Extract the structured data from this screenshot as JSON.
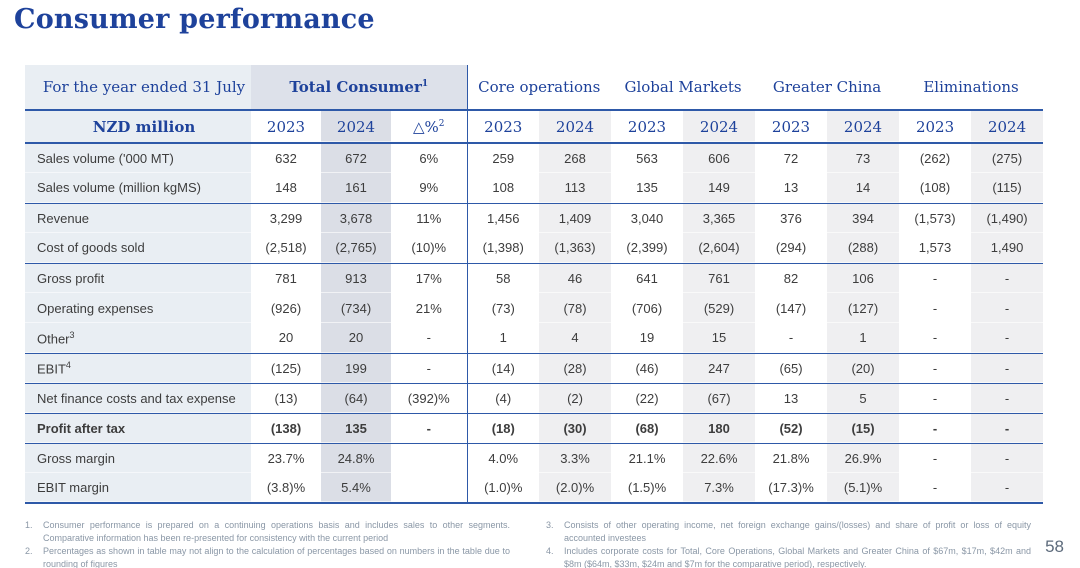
{
  "page": {
    "title": "Consumer performance",
    "page_number": "58"
  },
  "colors": {
    "accent_blue": "#1e429b",
    "line_blue": "#2e59a8",
    "label_column_bg": "#e9eef3",
    "total_consumer_header_bg": "#dde1ea",
    "total_consumer_2024_bg": "#dbdee6",
    "segment_2024_bg": "#efeff1",
    "data_text": "#3d3d3d",
    "footnote_text": "#8a97a6"
  },
  "table": {
    "corner_label": "For the year ended 31 July",
    "row_header_label": "NZD million",
    "segments": [
      {
        "name": "Total Consumer",
        "sup": "1",
        "span": 3,
        "total": true
      },
      {
        "name": "Core operations",
        "span": 2
      },
      {
        "name": "Global Markets",
        "span": 2
      },
      {
        "name": "Greater China",
        "span": 2
      },
      {
        "name": "Eliminations",
        "span": 2
      }
    ],
    "year_headers": [
      {
        "text": "2023"
      },
      {
        "text": "2024"
      },
      {
        "text": "△%",
        "sup": "2"
      },
      {
        "text": "2023"
      },
      {
        "text": "2024"
      },
      {
        "text": "2023"
      },
      {
        "text": "2024"
      },
      {
        "text": "2023"
      },
      {
        "text": "2024"
      },
      {
        "text": "2023"
      },
      {
        "text": "2024"
      }
    ],
    "rows": [
      {
        "label": "Sales volume ('000 MT)",
        "values": [
          "632",
          "672",
          "6%",
          "259",
          "268",
          "563",
          "606",
          "72",
          "73",
          "(262)",
          "(275)"
        ]
      },
      {
        "label": "Sales volume (million kgMS)",
        "values": [
          "148",
          "161",
          "9%",
          "108",
          "113",
          "135",
          "149",
          "13",
          "14",
          "(108)",
          "(115)"
        ]
      },
      {
        "label": "Revenue",
        "border_top": true,
        "values": [
          "3,299",
          "3,678",
          "11%",
          "1,456",
          "1,409",
          "3,040",
          "3,365",
          "376",
          "394",
          "(1,573)",
          "(1,490)"
        ]
      },
      {
        "label": "Cost of goods sold",
        "values": [
          "(2,518)",
          "(2,765)",
          "(10)%",
          "(1,398)",
          "(1,363)",
          "(2,399)",
          "(2,604)",
          "(294)",
          "(288)",
          "1,573",
          "1,490"
        ]
      },
      {
        "label": "Gross profit",
        "border_top": true,
        "values": [
          "781",
          "913",
          "17%",
          "58",
          "46",
          "641",
          "761",
          "82",
          "106",
          "-",
          "-"
        ]
      },
      {
        "label": "Operating expenses",
        "values": [
          "(926)",
          "(734)",
          "21%",
          "(73)",
          "(78)",
          "(706)",
          "(529)",
          "(147)",
          "(127)",
          "-",
          "-"
        ]
      },
      {
        "label": "Other",
        "sup": "3",
        "values": [
          "20",
          "20",
          "-",
          "1",
          "4",
          "19",
          "15",
          "-",
          "1",
          "-",
          "-"
        ]
      },
      {
        "label": "EBIT",
        "sup": "4",
        "border_top": true,
        "values": [
          "(125)",
          "199",
          "-",
          "(14)",
          "(28)",
          "(46)",
          "247",
          "(65)",
          "(20)",
          "-",
          "-"
        ]
      },
      {
        "label": "Net finance costs and tax expense",
        "border_top": true,
        "values": [
          "(13)",
          "(64)",
          "(392)%",
          "(4)",
          "(2)",
          "(22)",
          "(67)",
          "13",
          "5",
          "-",
          "-"
        ]
      },
      {
        "label": "Profit after tax",
        "bold": true,
        "border_top": true,
        "values": [
          "(138)",
          "135",
          "-",
          "(18)",
          "(30)",
          "(68)",
          "180",
          "(52)",
          "(15)",
          "-",
          "-"
        ]
      },
      {
        "label": "Gross margin",
        "border_top": true,
        "values": [
          "23.7%",
          "24.8%",
          "",
          "4.0%",
          "3.3%",
          "21.1%",
          "22.6%",
          "21.8%",
          "26.9%",
          "-",
          "-"
        ]
      },
      {
        "label": "EBIT margin",
        "values": [
          "(3.8)%",
          "5.4%",
          "",
          "(1.0)%",
          "(2.0)%",
          "(1.5)%",
          "7.3%",
          "(17.3)%",
          "(5.1)%",
          "-",
          "-"
        ]
      }
    ]
  },
  "footnotes": {
    "left": [
      {
        "num": "1.",
        "text": "Consumer performance is prepared on a continuing operations basis and includes sales to other segments. Comparative information has been re-presented for consistency with the current period"
      },
      {
        "num": "2.",
        "text": "Percentages as shown in table may not align to the calculation of percentages based on numbers in the table due to rounding of figures"
      }
    ],
    "right": [
      {
        "num": "3.",
        "text": "Consists of other operating income, net foreign exchange gains/(losses) and share of profit or loss of equity accounted investees"
      },
      {
        "num": "4.",
        "text": "Includes corporate costs for Total, Core Operations, Global Markets and Greater China of $67m, $17m, $42m and $8m ($64m, $33m, $24m and $7m for the comparative period), respectively."
      }
    ]
  }
}
